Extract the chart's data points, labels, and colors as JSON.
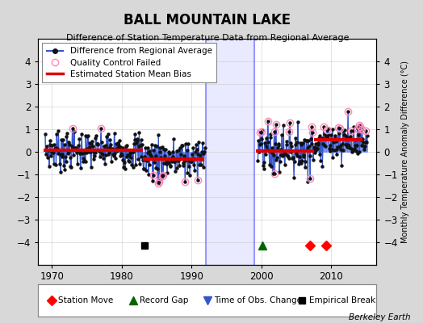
{
  "title": "BALL MOUNTAIN LAKE",
  "subtitle": "Difference of Station Temperature Data from Regional Average",
  "ylabel_right": "Monthly Temperature Anomaly Difference (°C)",
  "xlim": [
    1968.0,
    2016.5
  ],
  "ylim": [
    -5,
    5
  ],
  "yticks": [
    -4,
    -3,
    -2,
    -1,
    0,
    1,
    2,
    3,
    4
  ],
  "xticks": [
    1970,
    1980,
    1990,
    2000,
    2010
  ],
  "bg_color": "#d8d8d8",
  "plot_bg_color": "#ffffff",
  "gap_start": 1992.0,
  "gap_end": 1999.0,
  "gap_line_color": "#8888ff",
  "segments": [
    {
      "start": 1968.75,
      "end": 1983.0,
      "bias": 0.08
    },
    {
      "start": 1983.0,
      "end": 1991.8,
      "bias": -0.32
    },
    {
      "start": 1999.2,
      "end": 2007.5,
      "bias": 0.04
    },
    {
      "start": 2007.5,
      "end": 2014.5,
      "bias": 0.55
    }
  ],
  "bias_color": "#dd0000",
  "bias_linewidth": 3.0,
  "station_moves": [
    2007.0,
    2009.3
  ],
  "record_gap_x": 2000.2,
  "empirical_break_x": 1983.3,
  "time_obs_change_x": [],
  "marker_y": -4.15,
  "note": "Berkeley Earth",
  "line_color": "#3355cc",
  "stem_color": "#6688ee",
  "dot_color": "#111111",
  "qc_color": "#ff88bb"
}
